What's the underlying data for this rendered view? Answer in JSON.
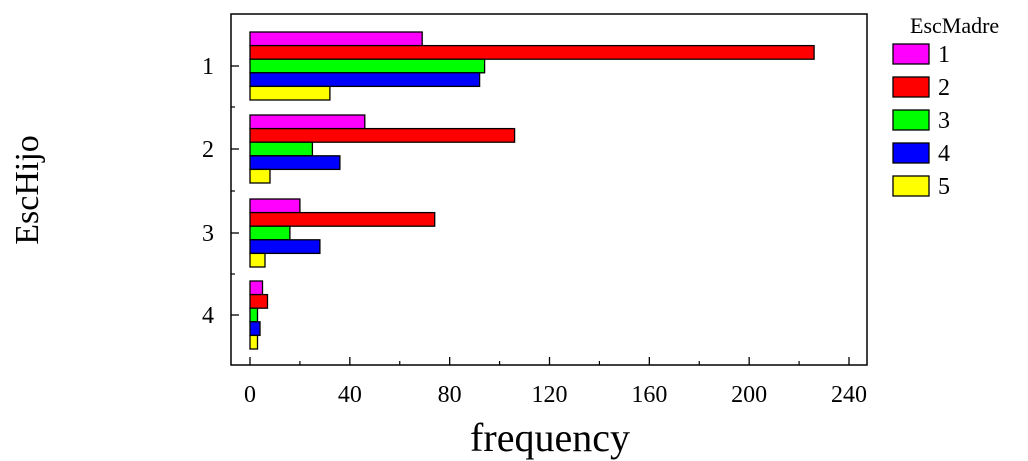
{
  "chart_data": {
    "type": "bar",
    "orientation": "horizontal",
    "title": "",
    "xlabel": "frequency",
    "ylabel": "EscHijo",
    "categories": [
      "1",
      "2",
      "3",
      "4"
    ],
    "xlim": [
      0,
      240
    ],
    "xticks": [
      "0",
      "40",
      "80",
      "120",
      "160",
      "200",
      "240"
    ],
    "grid": false,
    "legend": {
      "title": "EscMadre",
      "position": "top-right"
    },
    "series": [
      {
        "name": "1",
        "color": "#ff00ff",
        "values": [
          69,
          46,
          20,
          5
        ]
      },
      {
        "name": "2",
        "color": "#ff0000",
        "values": [
          226,
          106,
          74,
          7
        ]
      },
      {
        "name": "3",
        "color": "#00ff00",
        "values": [
          94,
          25,
          16,
          3
        ]
      },
      {
        "name": "4",
        "color": "#0000ff",
        "values": [
          92,
          36,
          28,
          4
        ]
      },
      {
        "name": "5",
        "color": "#ffff00",
        "values": [
          32,
          8,
          6,
          3
        ]
      }
    ]
  }
}
